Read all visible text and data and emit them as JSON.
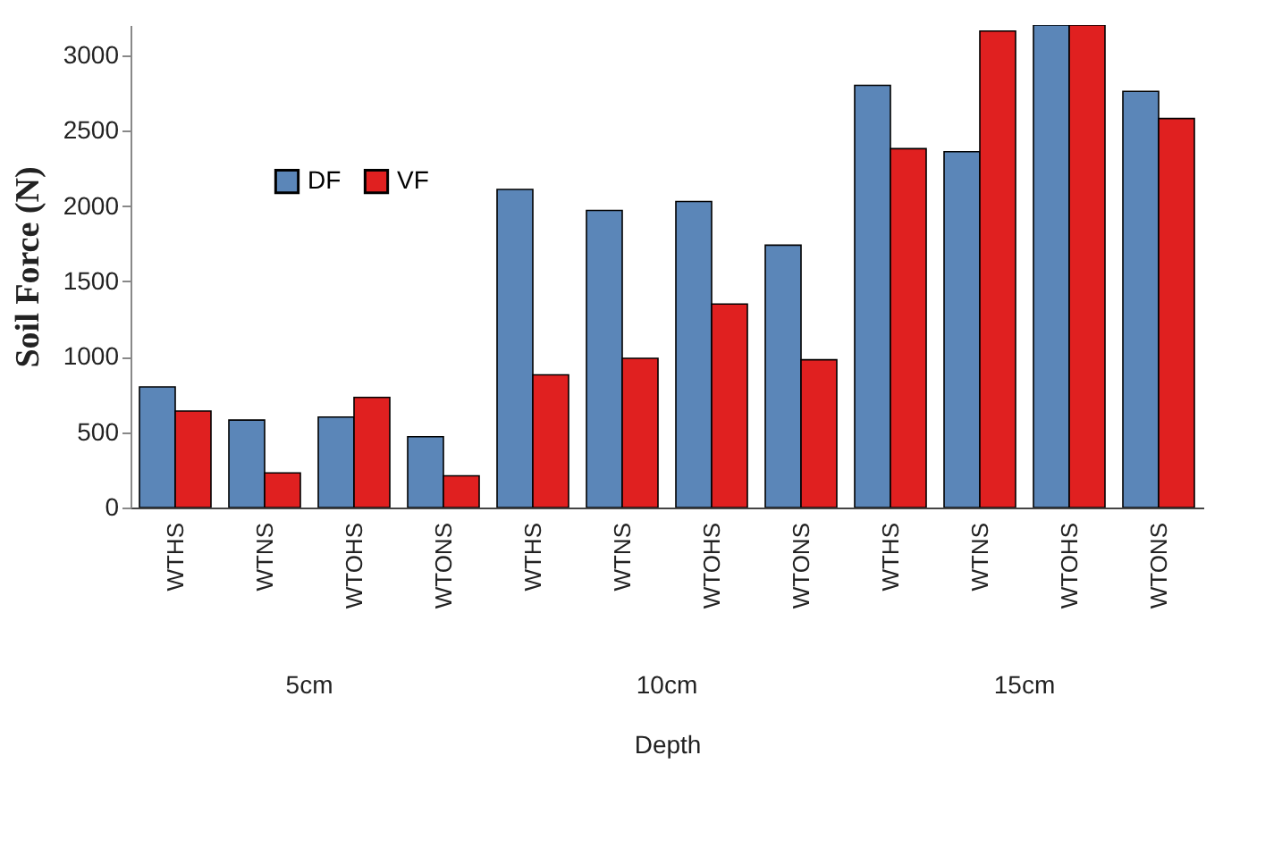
{
  "chart_data": {
    "type": "bar",
    "ylabel": "Soil Force (N)",
    "xlabel": "Depth",
    "categories": [
      "WTHS",
      "WTNS",
      "WTOHS",
      "WTONS",
      "WTHS",
      "WTNS",
      "WTOHS",
      "WTONS",
      "WTHS",
      "WTNS",
      "WTOHS",
      "WTONS"
    ],
    "series": [
      {
        "name": "DF",
        "color": "#5b86b8",
        "values": [
          800,
          580,
          600,
          470,
          2110,
          1970,
          2030,
          1740,
          2800,
          2360,
          3200,
          2760
        ]
      },
      {
        "name": "VF",
        "color": "#e02020",
        "values": [
          640,
          230,
          730,
          210,
          880,
          990,
          1350,
          980,
          2380,
          3160,
          3200,
          2580
        ]
      }
    ],
    "annotations": [
      "5cm",
      "10cm",
      "15cm"
    ],
    "ylim": [
      0,
      3200
    ],
    "yticks": [
      0,
      500,
      1000,
      1500,
      2000,
      2500,
      3000
    ],
    "grid": false,
    "legend": "top left"
  }
}
